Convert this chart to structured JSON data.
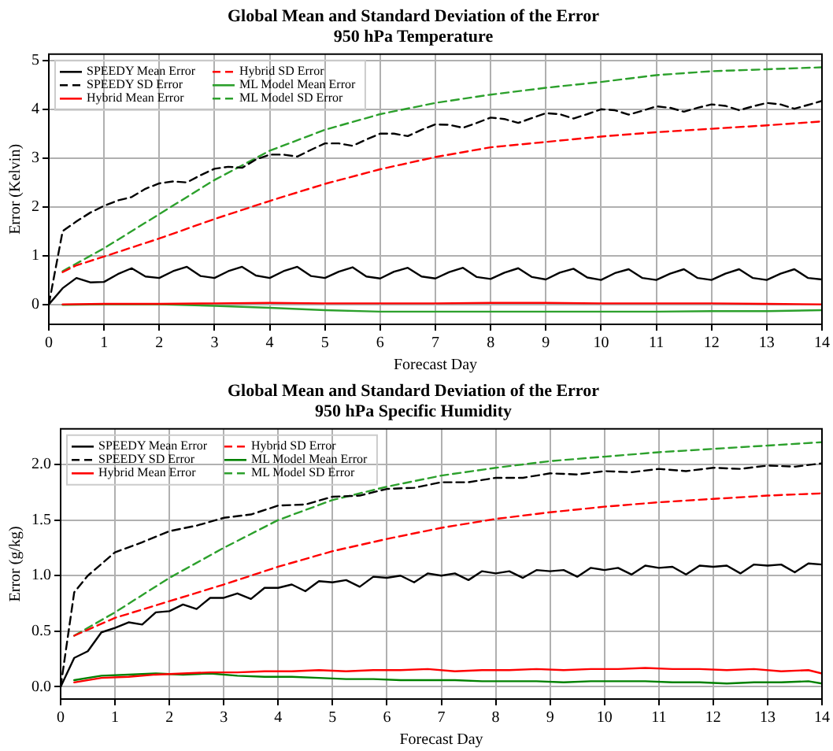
{
  "chart_data": [
    {
      "type": "line",
      "title": "Global Mean and Standard Deviation of the Error",
      "subtitle": "950 hPa Temperature",
      "xlabel": "Forecast Day",
      "ylabel": "Error (Kelvin)",
      "xlim": [
        0,
        14
      ],
      "xticks": [
        0,
        1,
        2,
        3,
        4,
        5,
        6,
        7,
        8,
        9,
        10,
        11,
        12,
        13,
        14
      ],
      "ylim": [
        -0.41,
        5.13
      ],
      "yticks": [
        0,
        1,
        2,
        3,
        4,
        5
      ],
      "grid": true,
      "legend": "top left",
      "marker": "none",
      "series": [
        {
          "name": "SPEEDY Mean Error",
          "color": "#000000",
          "line_style": "solid",
          "x": [
            0,
            0.25,
            0.5,
            0.75,
            1,
            1.25,
            1.5,
            1.75,
            2,
            2.25,
            2.5,
            2.75,
            3,
            3.25,
            3.5,
            3.75,
            4,
            4.25,
            4.5,
            4.75,
            5,
            5.25,
            5.5,
            5.75,
            6,
            6.25,
            6.5,
            6.75,
            7,
            7.25,
            7.5,
            7.75,
            8,
            8.25,
            8.5,
            8.75,
            9,
            9.25,
            9.5,
            9.75,
            10,
            10.25,
            10.5,
            10.75,
            11,
            11.25,
            11.5,
            11.75,
            12,
            12.25,
            12.5,
            12.75,
            13,
            13.25,
            13.5,
            13.75,
            14
          ],
          "values": [
            0,
            0.33,
            0.54,
            0.45,
            0.46,
            0.62,
            0.74,
            0.57,
            0.54,
            0.68,
            0.77,
            0.58,
            0.54,
            0.68,
            0.77,
            0.59,
            0.54,
            0.68,
            0.77,
            0.58,
            0.54,
            0.67,
            0.76,
            0.57,
            0.53,
            0.67,
            0.75,
            0.57,
            0.53,
            0.66,
            0.75,
            0.56,
            0.52,
            0.65,
            0.74,
            0.56,
            0.51,
            0.65,
            0.73,
            0.55,
            0.5,
            0.64,
            0.72,
            0.54,
            0.5,
            0.63,
            0.72,
            0.54,
            0.5,
            0.63,
            0.72,
            0.54,
            0.5,
            0.63,
            0.72,
            0.54,
            0.51
          ]
        },
        {
          "name": "SPEEDY SD Error",
          "color": "#000000",
          "line_style": "dashed",
          "x": [
            0,
            0.25,
            0.5,
            0.75,
            1,
            1.25,
            1.5,
            1.75,
            2,
            2.25,
            2.5,
            2.75,
            3,
            3.25,
            3.5,
            3.75,
            4,
            4.25,
            4.5,
            4.75,
            5,
            5.25,
            5.5,
            5.75,
            6,
            6.25,
            6.5,
            6.75,
            7,
            7.25,
            7.5,
            7.75,
            8,
            8.25,
            8.5,
            8.75,
            9,
            9.25,
            9.5,
            9.75,
            10,
            10.25,
            10.5,
            10.75,
            11,
            11.25,
            11.5,
            11.75,
            12,
            12.25,
            12.5,
            12.75,
            13,
            13.25,
            13.5,
            13.75,
            14
          ],
          "values": [
            0,
            1.5,
            1.7,
            1.88,
            2.02,
            2.13,
            2.2,
            2.37,
            2.48,
            2.52,
            2.5,
            2.65,
            2.78,
            2.82,
            2.8,
            2.97,
            3.07,
            3.07,
            3.03,
            3.17,
            3.3,
            3.3,
            3.25,
            3.38,
            3.5,
            3.5,
            3.45,
            3.58,
            3.69,
            3.68,
            3.62,
            3.72,
            3.83,
            3.8,
            3.72,
            3.82,
            3.92,
            3.9,
            3.81,
            3.9,
            4.0,
            3.98,
            3.89,
            3.97,
            4.06,
            4.03,
            3.95,
            4.03,
            4.1,
            4.07,
            3.98,
            4.06,
            4.13,
            4.1,
            4.01,
            4.09,
            4.17
          ]
        },
        {
          "name": "Hybrid Mean Error",
          "color": "#ff0000",
          "line_style": "solid",
          "x": [
            0.25,
            1,
            2,
            3,
            4,
            5,
            6,
            7,
            8,
            9,
            10,
            11,
            12,
            13,
            14
          ],
          "values": [
            0,
            0.01,
            0.01,
            0.02,
            0.03,
            0.02,
            0.02,
            0.02,
            0.03,
            0.03,
            0.02,
            0.02,
            0.02,
            0.01,
            0
          ]
        },
        {
          "name": "Hybrid SD Error",
          "color": "#ff0000",
          "line_style": "dashed",
          "x": [
            0.25,
            0.5,
            1,
            2,
            3,
            4,
            5,
            6,
            7,
            8,
            9,
            10,
            11,
            12,
            13,
            14
          ],
          "values": [
            0.66,
            0.8,
            0.98,
            1.35,
            1.75,
            2.12,
            2.47,
            2.77,
            3.02,
            3.22,
            3.33,
            3.44,
            3.53,
            3.6,
            3.67,
            3.75
          ]
        },
        {
          "name": "ML Model Mean Error",
          "color": "#2ca02c",
          "line_style": "solid",
          "x": [
            0.25,
            1,
            2,
            3,
            4,
            5,
            6,
            7,
            8,
            9,
            10,
            11,
            12,
            13,
            14
          ],
          "values": [
            -0.01,
            0,
            0,
            -0.03,
            -0.07,
            -0.12,
            -0.15,
            -0.15,
            -0.15,
            -0.15,
            -0.15,
            -0.15,
            -0.14,
            -0.14,
            -0.12
          ]
        },
        {
          "name": "ML Model SD Error",
          "color": "#2ca02c",
          "line_style": "dashed",
          "x": [
            0.25,
            1,
            2,
            3,
            4,
            5,
            6,
            7,
            8,
            9,
            10,
            11,
            12,
            13,
            14
          ],
          "values": [
            0.68,
            1.15,
            1.85,
            2.55,
            3.15,
            3.58,
            3.9,
            4.13,
            4.3,
            4.44,
            4.56,
            4.7,
            4.78,
            4.82,
            4.86
          ]
        }
      ]
    },
    {
      "type": "line",
      "title": "Global Mean and Standard Deviation of the Error",
      "subtitle": "950 hPa Specific Humidity",
      "xlabel": "Forecast Day",
      "ylabel": "Error (g/kg)",
      "xlim": [
        0,
        14
      ],
      "xticks": [
        0,
        1,
        2,
        3,
        4,
        5,
        6,
        7,
        8,
        9,
        10,
        11,
        12,
        13,
        14
      ],
      "ylim": [
        -0.11,
        2.32
      ],
      "yticks": [
        {
          "value": 0,
          "label": "0.0"
        },
        0.5,
        {
          "value": 1,
          "label": "1.0"
        },
        1.5,
        {
          "value": 2,
          "label": "2.0"
        }
      ],
      "grid": true,
      "legend": "top left",
      "marker": "none",
      "series": [
        {
          "name": "SPEEDY Mean Error",
          "color": "#000000",
          "line_style": "solid",
          "x": [
            0,
            0.25,
            0.5,
            0.75,
            1,
            1.25,
            1.5,
            1.75,
            2,
            2.25,
            2.5,
            2.75,
            3,
            3.25,
            3.5,
            3.75,
            4,
            4.25,
            4.5,
            4.75,
            5,
            5.25,
            5.5,
            5.75,
            6,
            6.25,
            6.5,
            6.75,
            7,
            7.25,
            7.5,
            7.75,
            8,
            8.25,
            8.5,
            8.75,
            9,
            9.25,
            9.5,
            9.75,
            10,
            10.25,
            10.5,
            10.75,
            11,
            11.25,
            11.5,
            11.75,
            12,
            12.25,
            12.5,
            12.75,
            13,
            13.25,
            13.5,
            13.75,
            14
          ],
          "values": [
            0,
            0.26,
            0.32,
            0.49,
            0.53,
            0.58,
            0.56,
            0.67,
            0.68,
            0.74,
            0.7,
            0.8,
            0.8,
            0.84,
            0.79,
            0.89,
            0.89,
            0.92,
            0.86,
            0.95,
            0.94,
            0.96,
            0.9,
            0.99,
            0.98,
            1.0,
            0.94,
            1.02,
            1.0,
            1.02,
            0.96,
            1.04,
            1.02,
            1.04,
            0.98,
            1.05,
            1.04,
            1.05,
            0.99,
            1.07,
            1.05,
            1.07,
            1.01,
            1.09,
            1.07,
            1.08,
            1.01,
            1.09,
            1.08,
            1.09,
            1.02,
            1.1,
            1.09,
            1.1,
            1.03,
            1.11,
            1.1
          ]
        },
        {
          "name": "SPEEDY SD Error",
          "color": "#000000",
          "line_style": "dashed",
          "x": [
            0,
            0.25,
            0.5,
            1,
            1.5,
            2,
            2.5,
            3,
            3.5,
            4,
            4.5,
            5,
            5.5,
            6,
            6.5,
            7,
            7.5,
            8,
            8.5,
            9,
            9.5,
            10,
            10.5,
            11,
            11.5,
            12,
            12.5,
            13,
            13.5,
            14
          ],
          "values": [
            0,
            0.85,
            1.0,
            1.21,
            1.3,
            1.4,
            1.45,
            1.52,
            1.55,
            1.63,
            1.64,
            1.71,
            1.72,
            1.78,
            1.79,
            1.84,
            1.84,
            1.88,
            1.88,
            1.92,
            1.91,
            1.94,
            1.93,
            1.96,
            1.94,
            1.97,
            1.96,
            1.99,
            1.98,
            2.01
          ]
        },
        {
          "name": "Hybrid Mean Error",
          "color": "#ff0000",
          "line_style": "solid",
          "x": [
            0.25,
            0.75,
            1.25,
            1.75,
            2.25,
            2.75,
            3.25,
            3.75,
            4.25,
            4.75,
            5.25,
            5.75,
            6.25,
            6.75,
            7.25,
            7.75,
            8.25,
            8.75,
            9.25,
            9.75,
            10.25,
            10.75,
            11.25,
            11.75,
            12.25,
            12.75,
            13.25,
            13.75,
            14
          ],
          "values": [
            0.04,
            0.08,
            0.09,
            0.11,
            0.12,
            0.13,
            0.13,
            0.14,
            0.14,
            0.15,
            0.14,
            0.15,
            0.15,
            0.16,
            0.14,
            0.15,
            0.15,
            0.16,
            0.15,
            0.16,
            0.16,
            0.17,
            0.16,
            0.16,
            0.15,
            0.16,
            0.14,
            0.15,
            0.12
          ]
        },
        {
          "name": "Hybrid SD Error",
          "color": "#ff0000",
          "line_style": "dashed",
          "x": [
            0.25,
            1,
            2,
            3,
            4,
            5,
            6,
            7,
            8,
            9,
            10,
            11,
            12,
            13,
            14
          ],
          "values": [
            0.46,
            0.62,
            0.77,
            0.92,
            1.08,
            1.22,
            1.33,
            1.43,
            1.51,
            1.57,
            1.62,
            1.66,
            1.69,
            1.72,
            1.74
          ]
        },
        {
          "name": "ML Model Mean Error",
          "color": "#008000",
          "line_style": "solid",
          "x": [
            0.25,
            0.75,
            1.25,
            1.75,
            2.25,
            2.75,
            3.25,
            3.75,
            4.25,
            4.75,
            5.25,
            5.75,
            6.25,
            6.75,
            7.25,
            7.75,
            8.25,
            8.75,
            9.25,
            9.75,
            10.25,
            10.75,
            11.25,
            11.75,
            12.25,
            12.75,
            13.25,
            13.75,
            14
          ],
          "values": [
            0.06,
            0.1,
            0.11,
            0.12,
            0.11,
            0.12,
            0.1,
            0.09,
            0.09,
            0.08,
            0.07,
            0.07,
            0.06,
            0.06,
            0.06,
            0.05,
            0.05,
            0.05,
            0.04,
            0.05,
            0.05,
            0.05,
            0.04,
            0.04,
            0.03,
            0.04,
            0.04,
            0.05,
            0.03
          ]
        },
        {
          "name": "ML Model SD Error",
          "color": "#2ca02c",
          "line_style": "dashed",
          "x": [
            0.25,
            1,
            2,
            3,
            4,
            5,
            6,
            7,
            8,
            9,
            10,
            11,
            12,
            13,
            14
          ],
          "values": [
            0.46,
            0.67,
            0.98,
            1.25,
            1.5,
            1.68,
            1.8,
            1.9,
            1.97,
            2.03,
            2.07,
            2.11,
            2.14,
            2.17,
            2.2
          ]
        }
      ]
    }
  ]
}
